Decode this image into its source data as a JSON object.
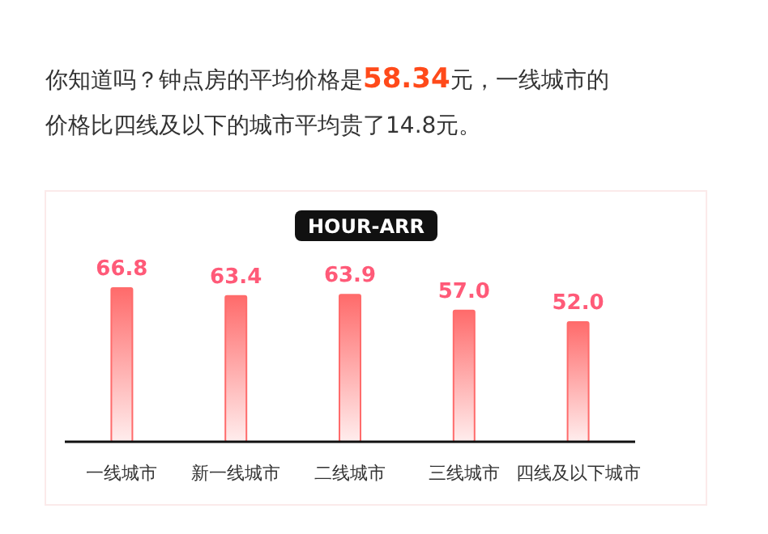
{
  "chart_data": {
    "type": "bar",
    "title": "HOUR-ARR",
    "annotations": [
      "你知道吗？钟点房的平均价格是**58.34**元，一线城市的价格比四线及以下的城市平均贵了14.8元。"
    ],
    "categories": [
      "一线城市",
      "新一线城市",
      "二线城市",
      "三线城市",
      "四线及以下城市"
    ],
    "values": [
      66.8,
      63.4,
      63.9,
      57.0,
      52.0
    ],
    "value_labels": [
      "66.8",
      "63.4",
      "63.9",
      "57.0",
      "52.0"
    ],
    "color": "#ff6b6b",
    "tick_labels": "x"
  }
}
